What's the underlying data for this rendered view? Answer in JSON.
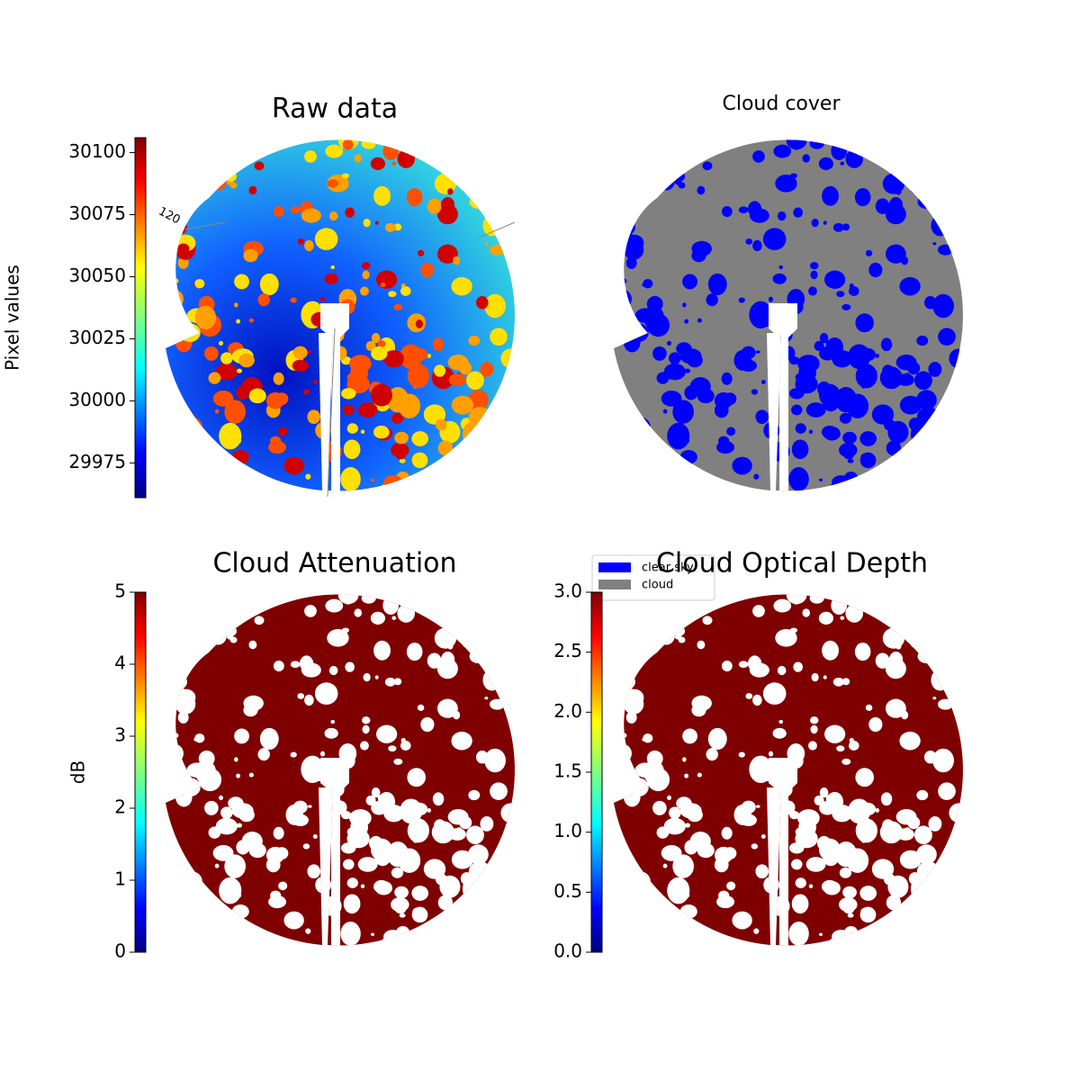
{
  "chart_data": [
    {
      "type": "image",
      "title": "Raw data",
      "colormap": "jet",
      "colorbar": {
        "label": "Pixel values",
        "lim": [
          29961,
          30106
        ],
        "ticks": [
          29975,
          30000,
          30025,
          30050,
          30075,
          30100
        ]
      },
      "annotations": [
        "120"
      ]
    },
    {
      "type": "image",
      "title": "Cloud cover",
      "legend": {
        "position": "lower left",
        "series": [
          {
            "name": "clear sky",
            "color": "#0000ff"
          },
          {
            "name": "cloud",
            "color": "#808080"
          }
        ]
      }
    },
    {
      "type": "image",
      "title": "Cloud Attenuation",
      "colormap": "jet",
      "colorbar": {
        "label": "dB",
        "lim": [
          0,
          5
        ],
        "ticks": [
          0,
          1,
          2,
          3,
          4,
          5
        ]
      }
    },
    {
      "type": "image",
      "title": "Cloud Optical Depth",
      "colormap": "jet",
      "colorbar": {
        "lim": [
          0,
          3
        ],
        "ticks": [
          {
            "value": 0,
            "label": "0.0"
          },
          0.5,
          {
            "value": 1,
            "label": "1.0"
          },
          1.5,
          {
            "value": 2,
            "label": "2.0"
          },
          2.5,
          {
            "value": 3,
            "label": "3.0"
          }
        ]
      }
    }
  ]
}
